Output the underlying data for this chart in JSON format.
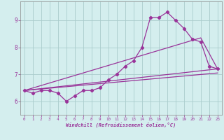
{
  "xlabel": "Windchill (Refroidissement éolien,°C)",
  "bg_color": "#d4eeee",
  "line_color": "#993399",
  "grid_color": "#aacccc",
  "spine_color": "#888888",
  "tick_color": "#993399",
  "xlim": [
    -0.5,
    23.5
  ],
  "ylim": [
    5.5,
    9.7
  ],
  "yticks": [
    6,
    7,
    8,
    9
  ],
  "xticks": [
    0,
    1,
    2,
    3,
    4,
    5,
    6,
    7,
    8,
    9,
    10,
    11,
    12,
    13,
    14,
    15,
    16,
    17,
    18,
    19,
    20,
    21,
    22,
    23
  ],
  "series1_x": [
    0,
    1,
    2,
    3,
    4,
    5,
    6,
    7,
    8,
    9,
    10,
    11,
    12,
    13,
    14,
    15,
    16,
    17,
    18,
    19,
    20,
    21,
    22,
    23
  ],
  "series1_y": [
    6.4,
    6.3,
    6.4,
    6.4,
    6.3,
    6.0,
    6.2,
    6.4,
    6.4,
    6.5,
    6.8,
    7.0,
    7.3,
    7.5,
    8.0,
    9.1,
    9.1,
    9.3,
    9.0,
    8.7,
    8.3,
    8.2,
    7.3,
    7.2
  ],
  "series2_x": [
    0,
    23
  ],
  "series2_y": [
    6.4,
    7.2
  ],
  "series3_x": [
    0,
    23
  ],
  "series3_y": [
    6.4,
    7.05
  ],
  "series4_x": [
    0,
    21,
    23
  ],
  "series4_y": [
    6.4,
    8.35,
    7.2
  ]
}
